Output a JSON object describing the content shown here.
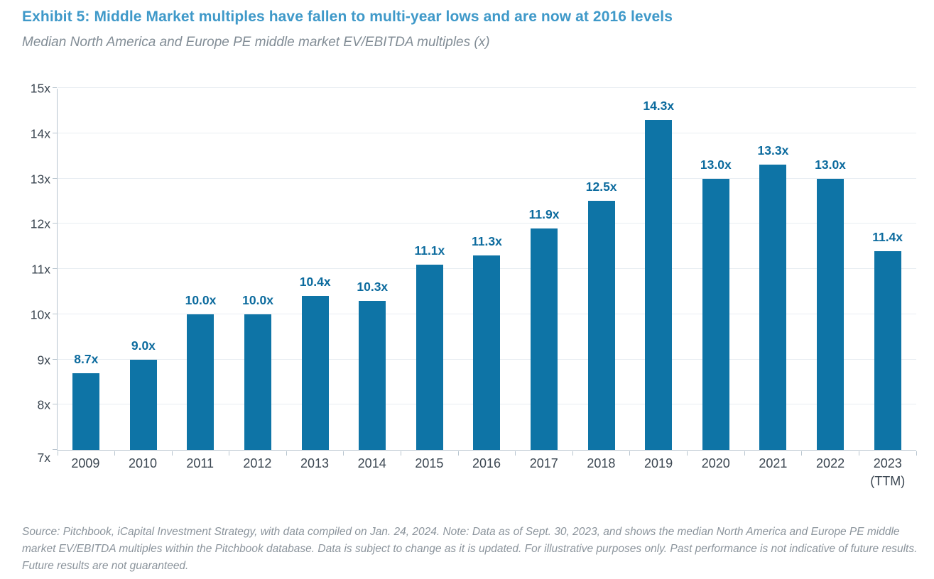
{
  "header": {
    "title": "Exhibit 5: Middle Market multiples have fallen to multi-year lows and are now at 2016 levels",
    "subtitle": "Median North America and Europe PE middle market EV/EBITDA multiples (x)"
  },
  "colors": {
    "title_blue": "#3f99c9",
    "bar_blue": "#0e74a6",
    "data_label_blue": "#0c6b9e",
    "axis_text": "#3b4651",
    "gridline": "#e8edf2",
    "axis_line": "#b8c5cf",
    "subtitle_gray": "#828d96",
    "footnote_gray": "#8b949c"
  },
  "chart_data": {
    "type": "bar",
    "categories": [
      "2009",
      "2010",
      "2011",
      "2012",
      "2013",
      "2014",
      "2015",
      "2016",
      "2017",
      "2018",
      "2019",
      "2020",
      "2021",
      "2022",
      "2023\n(TTM)"
    ],
    "values": [
      8.7,
      9.0,
      10.0,
      10.0,
      10.4,
      10.3,
      11.1,
      11.3,
      11.9,
      12.5,
      14.3,
      13.0,
      13.3,
      13.0,
      11.4
    ],
    "data_labels": [
      "8.7x",
      "9.0x",
      "10.0x",
      "10.0x",
      "10.4x",
      "10.3x",
      "11.1x",
      "11.3x",
      "11.9x",
      "12.5x",
      "14.3x",
      "13.0x",
      "13.3x",
      "13.0x",
      "11.4x"
    ],
    "title": "Exhibit 5: Middle Market multiples have fallen to multi-year lows and are now at 2016 levels",
    "xlabel": "",
    "ylabel": "Median North America and Europe PE middle market EV/EBITDA multiples (x)",
    "ylim": [
      7,
      15
    ],
    "ytick_values": [
      7,
      8,
      9,
      10,
      11,
      12,
      13,
      14,
      15
    ],
    "ytick_labels": [
      "7x",
      "8x",
      "9x",
      "10x",
      "11x",
      "12x",
      "13x",
      "14x",
      "15x"
    ],
    "grid": true,
    "legend": false,
    "data_label_position": "above-bar"
  },
  "footnote": "Source: Pitchbook, iCapital Investment Strategy, with data compiled on Jan. 24, 2024. Note: Data as of Sept. 30, 2023, and shows the median North America and Europe PE middle market EV/EBITDA multiples within the Pitchbook database. Data is subject to change as it is updated. For illustrative purposes only. Past performance is not indicative of future results. Future results are not guaranteed."
}
